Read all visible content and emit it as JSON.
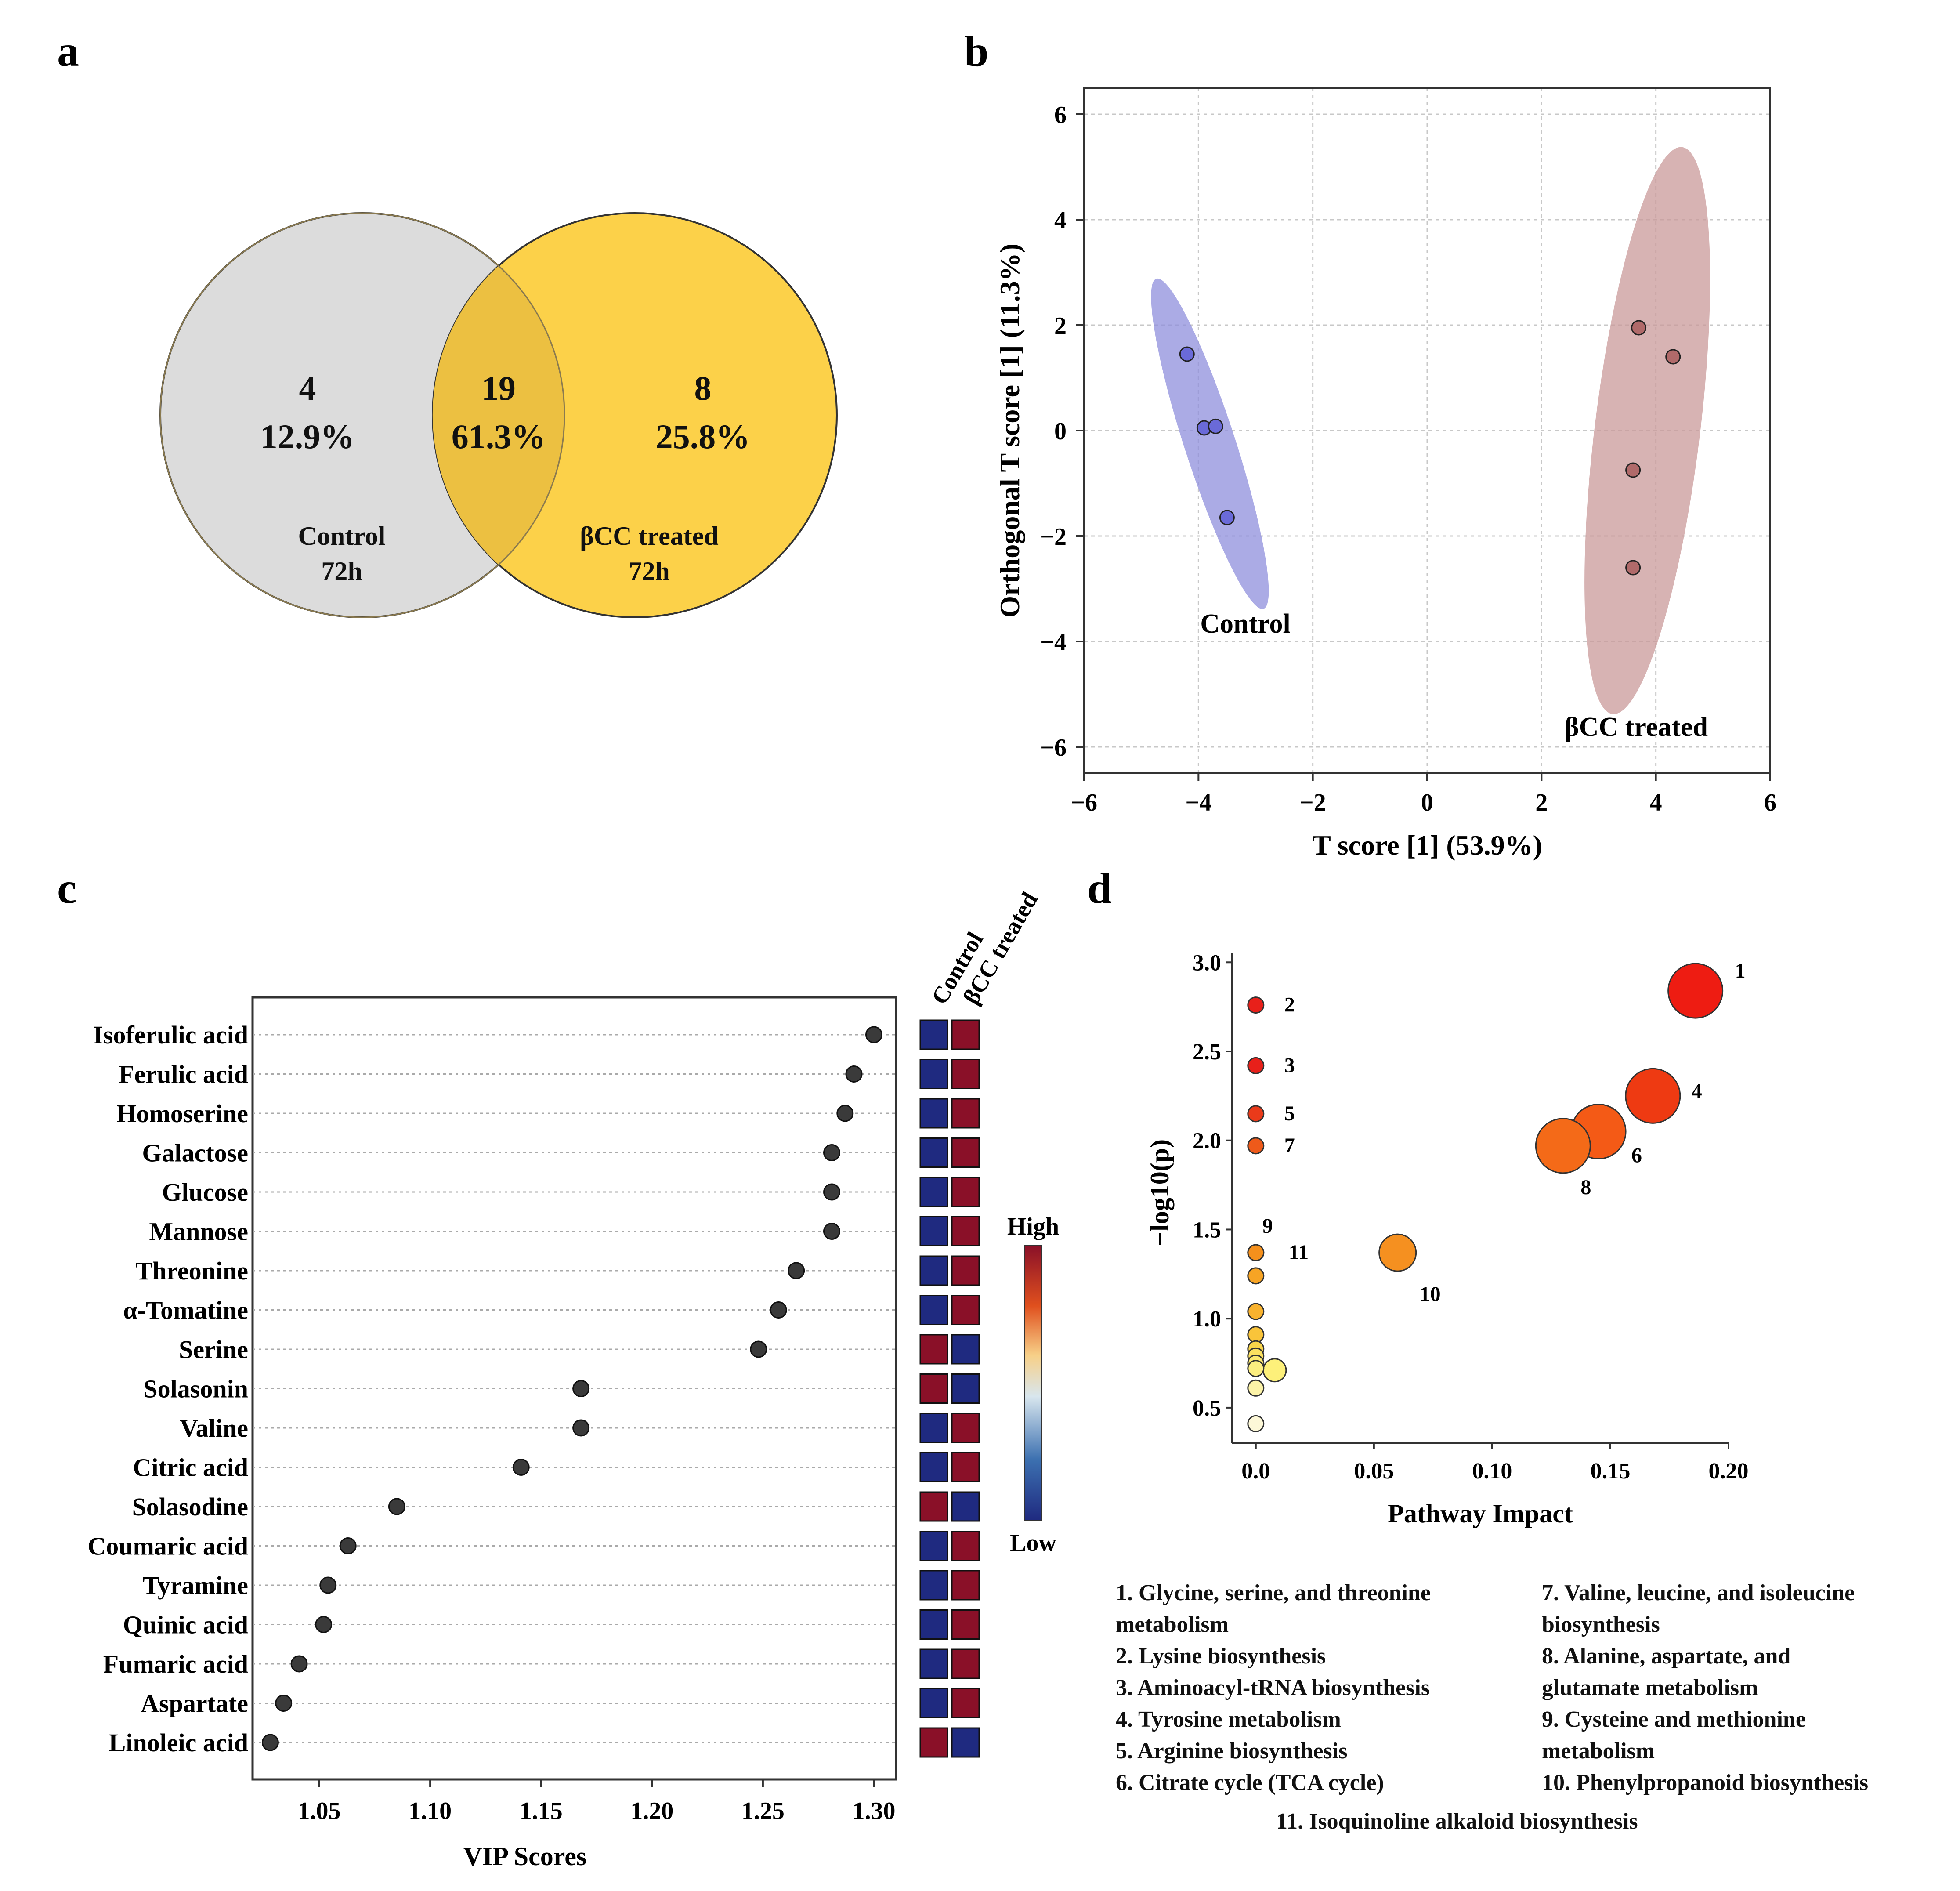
{
  "panels": {
    "a": "a",
    "b": "b",
    "c": "c",
    "d": "d"
  },
  "venn": {
    "left": {
      "count": "4",
      "pct": "12.9%",
      "label1": "Control",
      "label2": "72h"
    },
    "middle": {
      "count": "19",
      "pct": "61.3%"
    },
    "right": {
      "count": "8",
      "pct": "25.8%",
      "label1": "βCC treated",
      "label2": "72h"
    }
  },
  "colors": {
    "control_fill": "#dcdcdc",
    "treated_fill": "#fccd3a",
    "overlap_fill": "#ecc041",
    "control_ellipse": "#8f8fdc",
    "treated_ellipse": "#c99a9a",
    "control_point": "#6a6ad8",
    "treated_point": "#b06a6a",
    "heat_low": "#1f2a80",
    "heat_high": "#8a1028"
  },
  "chart_data": [
    {
      "id": "b",
      "type": "scatter",
      "xlabel": "T score [1] (53.9%)",
      "ylabel": "Orthogonal T score [1] (11.3%)",
      "xlim": [
        -6,
        6
      ],
      "ylim": [
        -6.5,
        6.5
      ],
      "xticks": [
        "−6",
        "−4",
        "−2",
        "0",
        "2",
        "4",
        "6"
      ],
      "yticks": [
        "−6",
        "−4",
        "−2",
        "0",
        "2",
        "4",
        "6"
      ],
      "series": [
        {
          "name": "Control",
          "x": [
            -4.2,
            -3.9,
            -3.7,
            -3.5
          ],
          "y": [
            1.45,
            0.05,
            0.08,
            -1.65
          ]
        },
        {
          "name": "βCC treated",
          "x": [
            3.7,
            4.3,
            3.6,
            3.6
          ],
          "y": [
            1.95,
            1.4,
            -0.75,
            -2.6
          ]
        }
      ],
      "group_labels": [
        "Control",
        "βCC treated"
      ]
    },
    {
      "id": "c",
      "type": "scatter",
      "xlabel": "VIP Scores",
      "xlim": [
        1.02,
        1.31
      ],
      "xticks": [
        "1.05",
        "1.10",
        "1.15",
        "1.20",
        "1.25",
        "1.30"
      ],
      "heatmap_columns": [
        "Control",
        "βCC treated"
      ],
      "color_scale": {
        "high": "High",
        "low": "Low"
      },
      "items": [
        {
          "name": "Isoferulic acid",
          "vip": 1.3,
          "control": "low",
          "treated": "high"
        },
        {
          "name": "Ferulic acid",
          "vip": 1.291,
          "control": "low",
          "treated": "high"
        },
        {
          "name": "Homoserine",
          "vip": 1.287,
          "control": "low",
          "treated": "high"
        },
        {
          "name": "Galactose",
          "vip": 1.281,
          "control": "low",
          "treated": "high"
        },
        {
          "name": "Glucose",
          "vip": 1.281,
          "control": "low",
          "treated": "high"
        },
        {
          "name": "Mannose",
          "vip": 1.281,
          "control": "low",
          "treated": "high"
        },
        {
          "name": "Threonine",
          "vip": 1.265,
          "control": "low",
          "treated": "high"
        },
        {
          "name": "α-Tomatine",
          "vip": 1.257,
          "control": "low",
          "treated": "high"
        },
        {
          "name": "Serine",
          "vip": 1.248,
          "control": "high",
          "treated": "low"
        },
        {
          "name": "Solasonin",
          "vip": 1.168,
          "control": "high",
          "treated": "low"
        },
        {
          "name": "Valine",
          "vip": 1.168,
          "control": "low",
          "treated": "high"
        },
        {
          "name": "Citric acid",
          "vip": 1.141,
          "control": "low",
          "treated": "high"
        },
        {
          "name": "Solasodine",
          "vip": 1.085,
          "control": "high",
          "treated": "low"
        },
        {
          "name": "Coumaric acid",
          "vip": 1.063,
          "control": "low",
          "treated": "high"
        },
        {
          "name": "Tyramine",
          "vip": 1.054,
          "control": "low",
          "treated": "high"
        },
        {
          "name": "Quinic acid",
          "vip": 1.052,
          "control": "low",
          "treated": "high"
        },
        {
          "name": "Fumaric acid",
          "vip": 1.041,
          "control": "low",
          "treated": "high"
        },
        {
          "name": "Aspartate",
          "vip": 1.034,
          "control": "low",
          "treated": "high"
        },
        {
          "name": "Linoleic acid",
          "vip": 1.028,
          "control": "high",
          "treated": "low"
        }
      ]
    },
    {
      "id": "d",
      "type": "scatter",
      "xlabel": "Pathway Impact",
      "ylabel": "−log10(p)",
      "xlim": [
        -0.01,
        0.2
      ],
      "ylim": [
        0.3,
        3.05
      ],
      "xticks": [
        "0.0",
        "0.05",
        "0.10",
        "0.15",
        "0.20"
      ],
      "yticks": [
        "0.5",
        "1.0",
        "1.5",
        "2.0",
        "2.5",
        "3.0"
      ],
      "points": [
        {
          "x": 0.0,
          "y": 2.76,
          "size": 1,
          "color": "#e8201a",
          "label": "2"
        },
        {
          "x": 0.0,
          "y": 2.42,
          "size": 1,
          "color": "#e8201a",
          "label": "3"
        },
        {
          "x": 0.0,
          "y": 2.15,
          "size": 1,
          "color": "#ea3a1a",
          "label": "5"
        },
        {
          "x": 0.0,
          "y": 1.97,
          "size": 1,
          "color": "#ee5a1a",
          "label": "7"
        },
        {
          "x": 0.0,
          "y": 1.37,
          "size": 1,
          "color": "#f5901c",
          "label": "9"
        },
        {
          "x": 0.0,
          "y": 1.37,
          "size": 1,
          "color": "#f5901c",
          "label": "11"
        },
        {
          "x": 0.0,
          "y": 1.24,
          "size": 1,
          "color": "#f7a424",
          "label": ""
        },
        {
          "x": 0.0,
          "y": 1.04,
          "size": 1,
          "color": "#f8b22e",
          "label": ""
        },
        {
          "x": 0.0,
          "y": 0.91,
          "size": 1,
          "color": "#f9c43a",
          "label": ""
        },
        {
          "x": 0.0,
          "y": 0.83,
          "size": 1,
          "color": "#fad64a",
          "label": ""
        },
        {
          "x": 0.0,
          "y": 0.79,
          "size": 1,
          "color": "#fbe060",
          "label": ""
        },
        {
          "x": 0.0,
          "y": 0.75,
          "size": 1,
          "color": "#fbe86e",
          "label": ""
        },
        {
          "x": 0.0,
          "y": 0.72,
          "size": 1,
          "color": "#fcee80",
          "label": ""
        },
        {
          "x": 0.0,
          "y": 0.61,
          "size": 1,
          "color": "#fcf3a8",
          "label": ""
        },
        {
          "x": 0.0,
          "y": 0.41,
          "size": 1,
          "color": "#fdf8d8",
          "label": ""
        },
        {
          "x": 0.008,
          "y": 0.71,
          "size": 2,
          "color": "#fdf07a",
          "label": ""
        },
        {
          "x": 0.186,
          "y": 2.84,
          "size": 5,
          "color": "#ee1c12",
          "label": "1"
        },
        {
          "x": 0.168,
          "y": 2.25,
          "size": 5,
          "color": "#ee3a12",
          "label": "4"
        },
        {
          "x": 0.145,
          "y": 2.05,
          "size": 5,
          "color": "#f45a16",
          "label": "6"
        },
        {
          "x": 0.13,
          "y": 1.97,
          "size": 5,
          "color": "#f46a18",
          "label": "8"
        },
        {
          "x": 0.06,
          "y": 1.37,
          "size": 3,
          "color": "#f59020",
          "label": "10"
        }
      ]
    }
  ],
  "pathway_legend": {
    "left": [
      "1.  Glycine, serine, and threonine",
      "      metabolism",
      "2.  Lysine biosynthesis",
      "3.  Aminoacyl-tRNA biosynthesis",
      "4.  Tyrosine metabolism",
      "5.  Arginine biosynthesis",
      "6.  Citrate cycle (TCA cycle)"
    ],
    "right": [
      "7.  Valine, leucine, and isoleucine",
      "      biosynthesis",
      "8.  Alanine, aspartate, and",
      "      glutamate metabolism",
      "9.  Cysteine and methionine",
      "      metabolism",
      "10. Phenylpropanoid biosynthesis"
    ],
    "last": "11. Isoquinoline alkaloid biosynthesis"
  }
}
